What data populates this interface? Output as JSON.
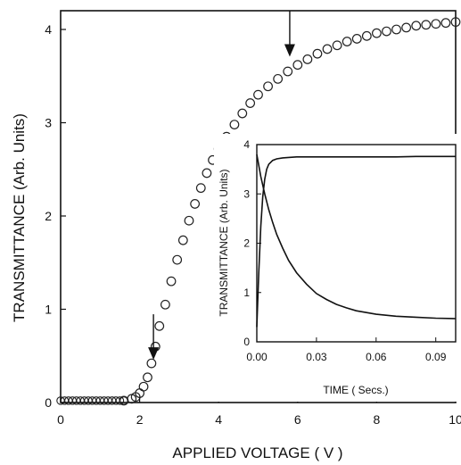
{
  "chart_data": [
    {
      "type": "scatter",
      "xlabel": "APPLIED VOLTAGE ( V )",
      "ylabel": "TRANSMITTANCE (Arb. Units)",
      "xlim": [
        0,
        10
      ],
      "ylim": [
        0,
        4.2
      ],
      "xticks": [
        "0",
        "2",
        "4",
        "6",
        "8",
        "10"
      ],
      "yticks": [
        "0",
        "1",
        "2",
        "3",
        "4"
      ],
      "marker": "open-circle",
      "x": [
        1.6,
        1.8,
        1.9,
        2.0,
        2.1,
        2.2,
        2.3,
        2.4,
        2.5,
        2.65,
        2.8,
        2.95,
        3.1,
        3.25,
        3.4,
        3.55,
        3.7,
        3.85,
        4.0,
        4.2,
        4.4,
        4.6,
        4.8,
        5.0,
        5.25,
        5.5,
        5.75,
        6.0,
        6.25,
        6.5,
        6.75,
        7.0,
        7.25,
        7.5,
        7.75,
        8.0,
        8.25,
        8.5,
        8.75,
        9.0,
        9.25,
        9.5,
        9.75,
        10.0
      ],
      "y": [
        0.02,
        0.04,
        0.06,
        0.1,
        0.17,
        0.27,
        0.42,
        0.6,
        0.82,
        1.05,
        1.3,
        1.53,
        1.74,
        1.95,
        2.13,
        2.3,
        2.46,
        2.6,
        2.72,
        2.85,
        2.98,
        3.1,
        3.21,
        3.3,
        3.39,
        3.47,
        3.55,
        3.62,
        3.68,
        3.74,
        3.79,
        3.83,
        3.87,
        3.9,
        3.93,
        3.96,
        3.98,
        4.0,
        4.02,
        4.04,
        4.05,
        4.06,
        4.07,
        4.08
      ],
      "baseline": {
        "x_from": 0.0,
        "x_to": 1.6,
        "y": 0.02
      },
      "annotations": [
        {
          "type": "arrow-down",
          "x": 2.35,
          "y": 0.42
        },
        {
          "type": "arrow-down",
          "x": 5.8,
          "y": 3.67
        }
      ]
    },
    {
      "type": "line",
      "inset": true,
      "xlabel": "TIME ( Secs.)",
      "ylabel": "TRANSMITTANCE (Arb. Units)",
      "xlim": [
        0,
        0.1
      ],
      "ylim": [
        0,
        4
      ],
      "xticks": [
        "0.00",
        "0.03",
        "0.06",
        "0.09"
      ],
      "yticks": [
        "0",
        "1",
        "2",
        "3",
        "4"
      ],
      "series": [
        {
          "x": [
            0.0,
            0.001,
            0.002,
            0.003,
            0.004,
            0.005,
            0.006,
            0.008,
            0.01,
            0.013,
            0.016,
            0.02,
            0.025,
            0.03,
            0.04,
            0.05,
            0.06,
            0.07,
            0.08,
            0.09,
            0.1
          ],
          "y": [
            0.3,
            1.4,
            2.35,
            2.95,
            3.3,
            3.5,
            3.6,
            3.68,
            3.71,
            3.73,
            3.74,
            3.75,
            3.75,
            3.75,
            3.75,
            3.75,
            3.75,
            3.75,
            3.76,
            3.76,
            3.76
          ]
        },
        {
          "x": [
            0.0,
            0.002,
            0.004,
            0.006,
            0.008,
            0.01,
            0.013,
            0.016,
            0.02,
            0.025,
            0.03,
            0.035,
            0.04,
            0.045,
            0.05,
            0.06,
            0.07,
            0.08,
            0.09,
            0.1
          ],
          "y": [
            3.8,
            3.35,
            3.0,
            2.68,
            2.42,
            2.18,
            1.9,
            1.65,
            1.4,
            1.17,
            0.98,
            0.86,
            0.76,
            0.69,
            0.63,
            0.56,
            0.52,
            0.5,
            0.48,
            0.47
          ]
        }
      ]
    }
  ]
}
